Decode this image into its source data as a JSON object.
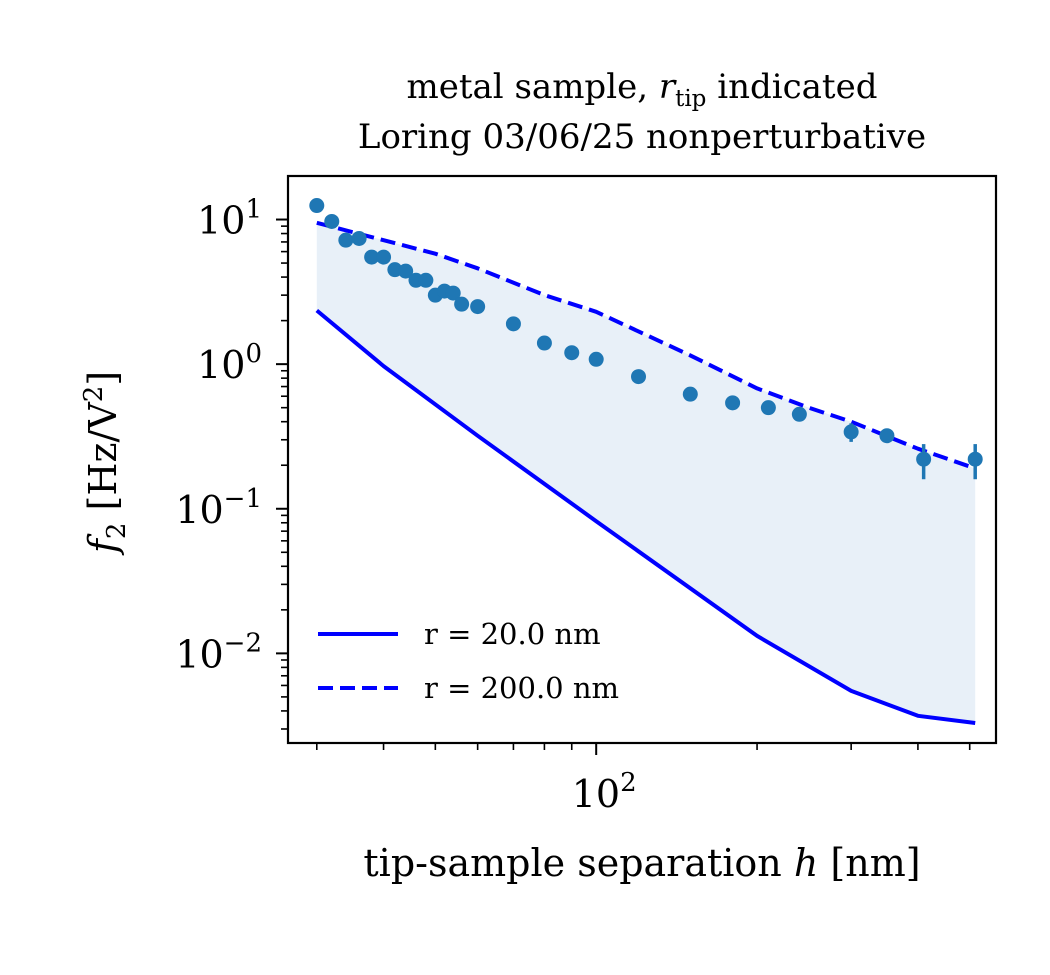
{
  "chart_data": {
    "type": "scatter",
    "title_lines": [
      {
        "pre": "metal sample, ",
        "var": "r",
        "sub": "tip",
        "post": " indicated"
      },
      {
        "pre": "Loring 03/06/25 nonperturbative",
        "var": "",
        "sub": "",
        "post": ""
      }
    ],
    "xlabel": {
      "pre": "tip-sample separation ",
      "var": "h",
      "post": " [nm]"
    },
    "ylabel": {
      "var": "f",
      "sub": "2",
      "pre": " [Hz/V",
      "sup": "2",
      "post": "]"
    },
    "x_scale": "log",
    "y_scale": "log",
    "xlim": [
      26.5,
      560
    ],
    "ylim": [
      0.0024,
      20
    ],
    "x_major_ticks": [
      {
        "value": 100,
        "base": "10",
        "exp": "2"
      }
    ],
    "x_minor_ticks": [
      30,
      40,
      50,
      60,
      70,
      80,
      90,
      200,
      300,
      400,
      500
    ],
    "y_major_ticks": [
      {
        "value": 10,
        "base": "10",
        "exp": "1"
      },
      {
        "value": 1,
        "base": "10",
        "exp": "0"
      },
      {
        "value": 0.1,
        "base": "10",
        "exp": "−1"
      },
      {
        "value": 0.01,
        "base": "10",
        "exp": "−2"
      }
    ],
    "legend_position": "lower-left",
    "grid": false,
    "series": [
      {
        "name": "r = 20.0 nm",
        "style": "solid",
        "color": "#0000ff",
        "x": [
          30,
          40,
          60,
          100,
          200,
          300,
          400,
          512
        ],
        "y": [
          2.35,
          0.97,
          0.32,
          0.082,
          0.0132,
          0.0055,
          0.0037,
          0.0033
        ]
      },
      {
        "name": "r = 200.0 nm",
        "style": "dashed",
        "color": "#0000ff",
        "x": [
          30,
          40,
          50,
          60,
          80,
          100,
          150,
          200,
          250,
          300,
          400,
          512
        ],
        "y": [
          9.5,
          7.2,
          5.8,
          4.6,
          3.0,
          2.3,
          1.15,
          0.68,
          0.5,
          0.4,
          0.26,
          0.19
        ]
      }
    ],
    "fill_between": {
      "color": "#e8f0f8",
      "series": [
        "r = 20.0 nm",
        "r = 200.0 nm"
      ]
    },
    "points": {
      "color": "#1f77b4",
      "x": [
        30,
        32,
        34,
        36,
        38,
        40,
        42,
        44,
        46,
        48,
        50,
        52,
        54,
        56,
        60,
        70,
        80,
        90,
        100,
        120,
        150,
        180,
        210,
        240,
        300,
        350,
        410,
        512
      ],
      "y": [
        12.5,
        9.7,
        7.2,
        7.4,
        5.5,
        5.5,
        4.5,
        4.4,
        3.8,
        3.8,
        3.0,
        3.2,
        3.1,
        2.6,
        2.5,
        1.9,
        1.4,
        1.2,
        1.08,
        0.82,
        0.62,
        0.54,
        0.5,
        0.45,
        0.34,
        0.32,
        0.22,
        0.22
      ],
      "yerr": [
        0,
        0,
        0,
        0,
        0,
        0,
        0,
        0,
        0,
        0,
        0,
        0,
        0,
        0,
        0,
        0,
        0,
        0,
        0,
        0,
        0,
        0,
        0,
        0,
        0.05,
        0,
        0.06,
        0.06
      ]
    }
  }
}
